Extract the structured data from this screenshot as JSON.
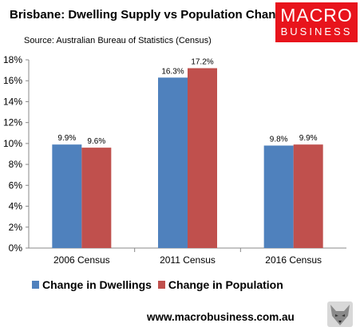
{
  "title": "Brisbane: Dwelling Supply vs Population Change",
  "source": "Source: Australian Bureau of Statistics (Census)",
  "logo": {
    "line1": "MACRO",
    "line2": "BUSINESS"
  },
  "footer": "www.macrobusiness.com.au",
  "chart_data": {
    "type": "bar",
    "title": "Brisbane: Dwelling Supply vs Population Change",
    "categories": [
      "2006 Census",
      "2011 Census",
      "2016 Census"
    ],
    "series": [
      {
        "name": "Change in Dwellings",
        "values": [
          9.9,
          16.3,
          9.8
        ],
        "labels": [
          "9.9%",
          "16.3%",
          "9.8%"
        ],
        "color": "#4f81bd"
      },
      {
        "name": "Change in Population",
        "values": [
          9.6,
          17.2,
          9.9
        ],
        "labels": [
          "9.6%",
          "17.2%",
          "9.9%"
        ],
        "color": "#c0504d"
      }
    ],
    "ylim": [
      0,
      18
    ],
    "yticks": [
      0,
      2,
      4,
      6,
      8,
      10,
      12,
      14,
      16,
      18
    ],
    "ytick_labels": [
      "0%",
      "2%",
      "4%",
      "6%",
      "8%",
      "10%",
      "12%",
      "14%",
      "16%",
      "18%"
    ],
    "grid": false,
    "legend_position": "bottom"
  }
}
